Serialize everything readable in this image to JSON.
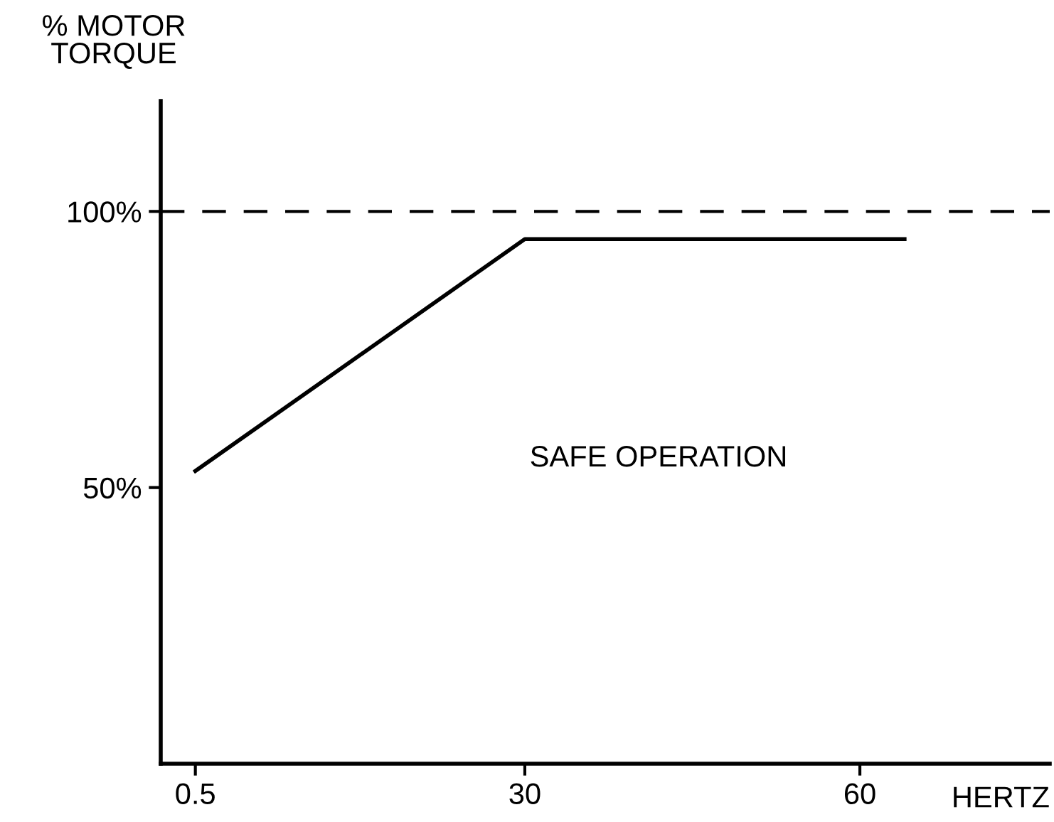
{
  "chart_data": {
    "type": "line",
    "xlabel": "HERTZ",
    "ylabel": "% MOTOR\nTORQUE",
    "x": [
      0.5,
      30,
      64
    ],
    "series": [
      {
        "color": "#000000",
        "values": [
          53,
          95,
          95
        ]
      }
    ],
    "xlim": [
      -2.6,
      77
    ],
    "ylim": [
      0,
      120
    ],
    "xticks": [
      0.5,
      30,
      60
    ],
    "yticks": [
      {
        "value": 50,
        "label": "50%"
      },
      {
        "value": 100,
        "label": "100%"
      }
    ],
    "ref_lines": [
      {
        "axis": "y",
        "value": 100,
        "line_style": "dashed",
        "color": "#000000"
      }
    ],
    "annotations": [
      "SAFE OPERATION"
    ],
    "grid": false,
    "legend": false,
    "marker": "none",
    "line_style": "solid"
  }
}
